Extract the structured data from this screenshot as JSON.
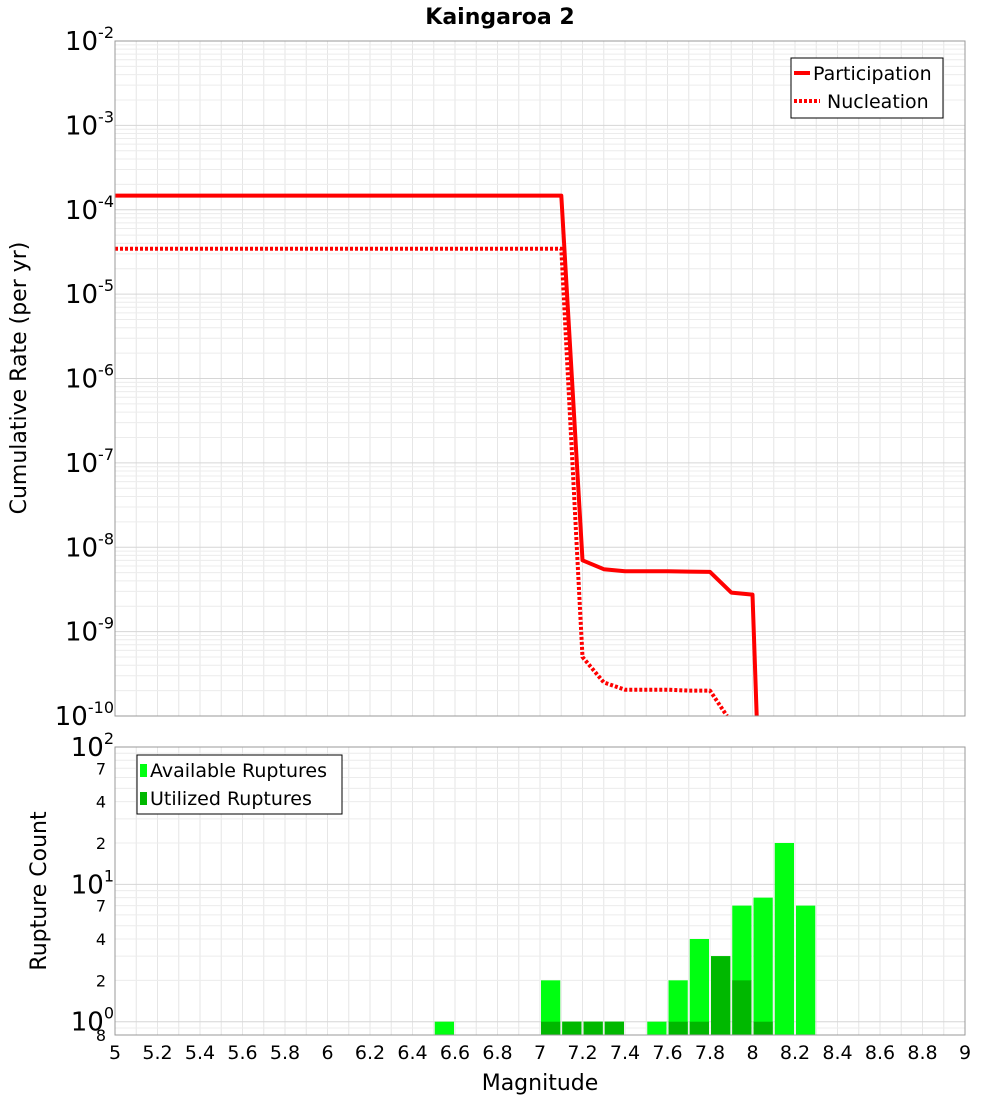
{
  "chart_data": [
    {
      "type": "line",
      "title": "Kaingaroa 2",
      "xlabel": "",
      "ylabel": "Cumulative Rate (per yr)",
      "y_scale": "log",
      "xlim": [
        5,
        9
      ],
      "ylim": [
        1e-10,
        0.01
      ],
      "grid": true,
      "legend_position": "top-right",
      "y_tick_labels": [
        {
          "base": "10",
          "exp": "-2"
        },
        {
          "base": "10",
          "exp": "-3"
        },
        {
          "base": "10",
          "exp": "-4"
        },
        {
          "base": "10",
          "exp": "-5"
        },
        {
          "base": "10",
          "exp": "-6"
        },
        {
          "base": "10",
          "exp": "-7"
        },
        {
          "base": "10",
          "exp": "-8"
        },
        {
          "base": "10",
          "exp": "-9"
        },
        {
          "base": "10",
          "exp": "-10"
        }
      ],
      "series": [
        {
          "name": "Participation",
          "style": "solid",
          "color": "#ff0000",
          "points": [
            [
              5.0,
              0.000147
            ],
            [
              7.1,
              0.000147
            ],
            [
              7.2,
              7e-09
            ],
            [
              7.3,
              5.5e-09
            ],
            [
              7.4,
              5.2e-09
            ],
            [
              7.5,
              5.2e-09
            ],
            [
              7.6,
              5.2e-09
            ],
            [
              7.7,
              5.15e-09
            ],
            [
              7.8,
              5.1e-09
            ],
            [
              7.9,
              2.9e-09
            ],
            [
              8.0,
              2.75e-09
            ],
            [
              8.02,
              1e-10
            ]
          ]
        },
        {
          "name": "Nucleation",
          "style": "dotted",
          "color": "#ff0000",
          "points": [
            [
              5.0,
              3.45e-05
            ],
            [
              7.1,
              3.45e-05
            ],
            [
              7.2,
              5e-10
            ],
            [
              7.3,
              2.5e-10
            ],
            [
              7.4,
              2.05e-10
            ],
            [
              7.5,
              2.05e-10
            ],
            [
              7.6,
              2.05e-10
            ],
            [
              7.7,
              2e-10
            ],
            [
              7.8,
              2e-10
            ],
            [
              7.88,
              1e-10
            ]
          ]
        }
      ]
    },
    {
      "type": "bar",
      "xlabel": "Magnitude",
      "ylabel": "Rupture Count",
      "y_scale": "log",
      "xlim": [
        5,
        9
      ],
      "ylim": [
        0.8,
        100
      ],
      "grid": true,
      "legend_position": "top-left",
      "x_ticks": [
        "5",
        "5.2",
        "5.4",
        "5.6",
        "5.8",
        "6",
        "6.2",
        "6.4",
        "6.6",
        "6.8",
        "7",
        "7.2",
        "7.4",
        "7.6",
        "7.8",
        "8",
        "8.2",
        "8.4",
        "8.6",
        "8.8",
        "9"
      ],
      "y_major_labels": [
        {
          "base": "10",
          "exp": "2",
          "value": 100
        },
        {
          "base": "10",
          "exp": "1",
          "value": 10
        },
        {
          "base": "10",
          "exp": "0",
          "value": 1
        }
      ],
      "y_minor_labels": [
        {
          "label": "7",
          "value": 70
        },
        {
          "label": "4",
          "value": 40
        },
        {
          "label": "2",
          "value": 20
        },
        {
          "label": "7",
          "value": 7
        },
        {
          "label": "4",
          "value": 4
        },
        {
          "label": "2",
          "value": 2
        },
        {
          "label": "8",
          "value": 0.8
        }
      ],
      "bin_width": 0.1,
      "series": [
        {
          "name": "Available Ruptures",
          "color": "#00ff11",
          "bars": [
            {
              "x": 6.55,
              "value": 1
            },
            {
              "x": 7.05,
              "value": 2
            },
            {
              "x": 7.15,
              "value": 1
            },
            {
              "x": 7.25,
              "value": 1
            },
            {
              "x": 7.35,
              "value": 1
            },
            {
              "x": 7.55,
              "value": 1
            },
            {
              "x": 7.65,
              "value": 2
            },
            {
              "x": 7.75,
              "value": 4
            },
            {
              "x": 7.85,
              "value": 3
            },
            {
              "x": 7.95,
              "value": 7
            },
            {
              "x": 8.05,
              "value": 8
            },
            {
              "x": 8.15,
              "value": 20
            },
            {
              "x": 8.25,
              "value": 7
            }
          ]
        },
        {
          "name": "Utilized Ruptures",
          "color": "#00b800",
          "bars": [
            {
              "x": 7.05,
              "value": 1
            },
            {
              "x": 7.15,
              "value": 1
            },
            {
              "x": 7.25,
              "value": 1
            },
            {
              "x": 7.35,
              "value": 1
            },
            {
              "x": 7.65,
              "value": 1
            },
            {
              "x": 7.75,
              "value": 1
            },
            {
              "x": 7.85,
              "value": 3
            },
            {
              "x": 7.95,
              "value": 2
            },
            {
              "x": 8.05,
              "value": 1
            }
          ]
        }
      ]
    }
  ]
}
